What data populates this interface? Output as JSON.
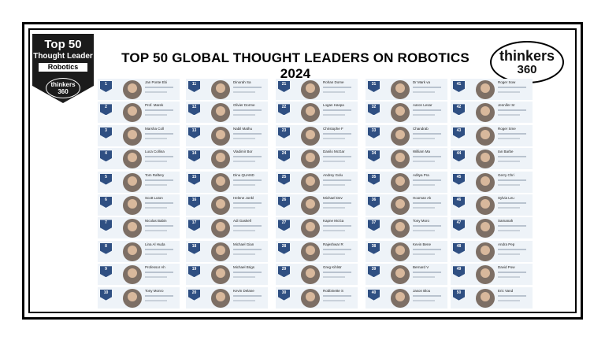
{
  "badge": {
    "line1": "Top 50",
    "line2": "Thought Leader",
    "line3": "Robotics",
    "logo": "thinkers 360"
  },
  "title": "TOP 50 GLOBAL THOUGHT LEADERS ON ROBOTICS 2024",
  "logo": {
    "line1": "thinkers",
    "line2": "360"
  },
  "columns": [
    [
      {
        "rank": "1",
        "name": "Jan Ponte Ebi"
      },
      {
        "rank": "2",
        "name": "Prof. Marek"
      },
      {
        "rank": "3",
        "name": "Marsha Coll"
      },
      {
        "rank": "4",
        "name": "Luca Collina"
      },
      {
        "rank": "5",
        "name": "Tom Raftery"
      },
      {
        "rank": "6",
        "name": "Scott Luton"
      },
      {
        "rank": "7",
        "name": "Nicolas Babin"
      },
      {
        "rank": "8",
        "name": "Lina Al Huda"
      },
      {
        "rank": "9",
        "name": "Professor Ah"
      },
      {
        "rank": "10",
        "name": "Tony Monro"
      }
    ],
    [
      {
        "rank": "11",
        "name": "Dinorah Sa"
      },
      {
        "rank": "12",
        "name": "Olivier Dorme"
      },
      {
        "rank": "13",
        "name": "Nabil Mathu"
      },
      {
        "rank": "14",
        "name": "Vladimir Bor"
      },
      {
        "rank": "15",
        "name": "Dinu QUAND"
      },
      {
        "rank": "16",
        "name": "Helene Jonkl"
      },
      {
        "rank": "17",
        "name": "Adi Gaskell"
      },
      {
        "rank": "18",
        "name": "Michael Gian"
      },
      {
        "rank": "19",
        "name": "Michael Brigs"
      },
      {
        "rank": "20",
        "name": "Kevin Delane"
      }
    ],
    [
      {
        "rank": "21",
        "name": "Rohan Dome"
      },
      {
        "rank": "22",
        "name": "Logan Haspa"
      },
      {
        "rank": "23",
        "name": "Christophe F"
      },
      {
        "rank": "24",
        "name": "Danilo McGar"
      },
      {
        "rank": "25",
        "name": "Andrey Golu"
      },
      {
        "rank": "26",
        "name": "Michael Dev"
      },
      {
        "rank": "27",
        "name": "Kapne McGa"
      },
      {
        "rank": "28",
        "name": "Rajeshwar R"
      },
      {
        "rank": "29",
        "name": "Greg Kihlstr"
      },
      {
        "rank": "30",
        "name": "Robbinette S"
      }
    ],
    [
      {
        "rank": "31",
        "name": "Dr Mark va"
      },
      {
        "rank": "32",
        "name": "Aaron Lesar"
      },
      {
        "rank": "33",
        "name": "Chandrab"
      },
      {
        "rank": "34",
        "name": "William Ma"
      },
      {
        "rank": "35",
        "name": "Aditya Pra"
      },
      {
        "rank": "36",
        "name": "Hooman Ak"
      },
      {
        "rank": "37",
        "name": "Tony Moro"
      },
      {
        "rank": "38",
        "name": "Kevin Bene"
      },
      {
        "rank": "39",
        "name": "Bernard V"
      },
      {
        "rank": "40",
        "name": "Jason Blou"
      }
    ],
    [
      {
        "rank": "41",
        "name": "Roger Sow"
      },
      {
        "rank": "42",
        "name": "Jennifer Sr"
      },
      {
        "rank": "43",
        "name": "Roger Sme"
      },
      {
        "rank": "44",
        "name": "Ian Barbe"
      },
      {
        "rank": "45",
        "name": "Gerry Chri"
      },
      {
        "rank": "46",
        "name": "Sylvia Leu"
      },
      {
        "rank": "47",
        "name": "Samanah"
      },
      {
        "rank": "48",
        "name": "Andra Pep"
      },
      {
        "rank": "49",
        "name": "David Pow"
      },
      {
        "rank": "50",
        "name": "Eric Vand"
      }
    ]
  ]
}
